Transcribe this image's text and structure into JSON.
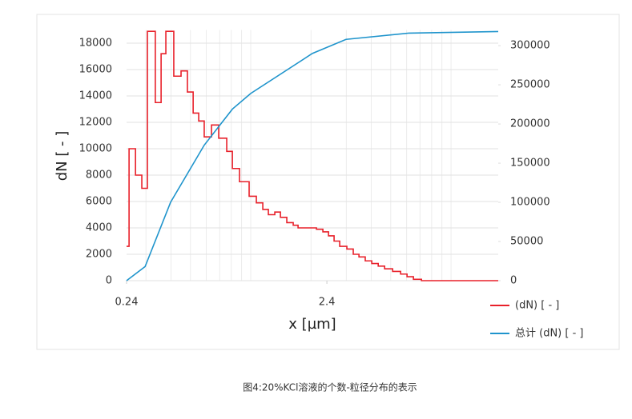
{
  "chart_data": {
    "type": "line",
    "ylabel": "dN [ - ]",
    "xlabel": "x [µm]",
    "caption": "图4:20%KCl溶液的个数-粒径分布的表示",
    "xscale": "log",
    "xlim": [
      0.24,
      17.2
    ],
    "xticks": [
      0.24,
      2.4
    ],
    "xgrid": [
      0.3,
      0.4,
      0.5,
      0.6,
      0.7,
      0.8,
      0.9,
      1,
      2,
      3,
      4,
      5,
      6,
      7,
      8,
      9,
      10
    ],
    "ylim": [
      0,
      19000
    ],
    "yticks": [
      0,
      2000,
      4000,
      6000,
      8000,
      10000,
      12000,
      14000,
      16000,
      18000
    ],
    "y2lim": [
      0,
      320000
    ],
    "y2ticks": [
      0,
      50000,
      100000,
      150000,
      200000,
      250000,
      300000
    ],
    "grid": true,
    "legend": "lower right",
    "series": [
      {
        "name": "(dN) [ - ]",
        "color": "#e8202a",
        "step": true,
        "x": [
          0.24,
          0.247,
          0.266,
          0.286,
          0.305,
          0.334,
          0.357,
          0.377,
          0.413,
          0.449,
          0.483,
          0.516,
          0.55,
          0.586,
          0.637,
          0.692,
          0.759,
          0.81,
          0.879,
          0.982,
          1.067,
          1.149,
          1.225,
          1.319,
          1.407,
          1.514,
          1.63,
          1.723,
          2.129,
          2.292,
          2.445,
          2.607,
          2.781,
          3.02,
          3.25,
          3.47,
          3.73,
          4.02,
          4.33,
          4.66,
          5.11,
          5.6,
          6.03,
          6.49,
          7.12,
          7.8
        ],
        "values": [
          2600,
          10000,
          8000,
          7000,
          18900,
          13500,
          17200,
          18900,
          15500,
          15900,
          14300,
          12700,
          12100,
          10900,
          11800,
          10800,
          9800,
          8500,
          7500,
          6400,
          5900,
          5400,
          5000,
          5200,
          4800,
          4400,
          4200,
          4000,
          3900,
          3700,
          3400,
          3000,
          2600,
          2400,
          2000,
          1800,
          1500,
          1300,
          1100,
          900,
          700,
          500,
          300,
          100,
          0,
          0
        ]
      },
      {
        "name": "总计 (dN) [ - ]",
        "color": "#1f94cc",
        "axis": "y2",
        "x": [
          0.24,
          0.297,
          0.398,
          0.586,
          0.81,
          1.0,
          2.03,
          2.99,
          6.14,
          17.2
        ],
        "values": [
          0,
          18000,
          100000,
          173000,
          219000,
          239000,
          290000,
          308000,
          316000,
          318000
        ]
      }
    ]
  }
}
